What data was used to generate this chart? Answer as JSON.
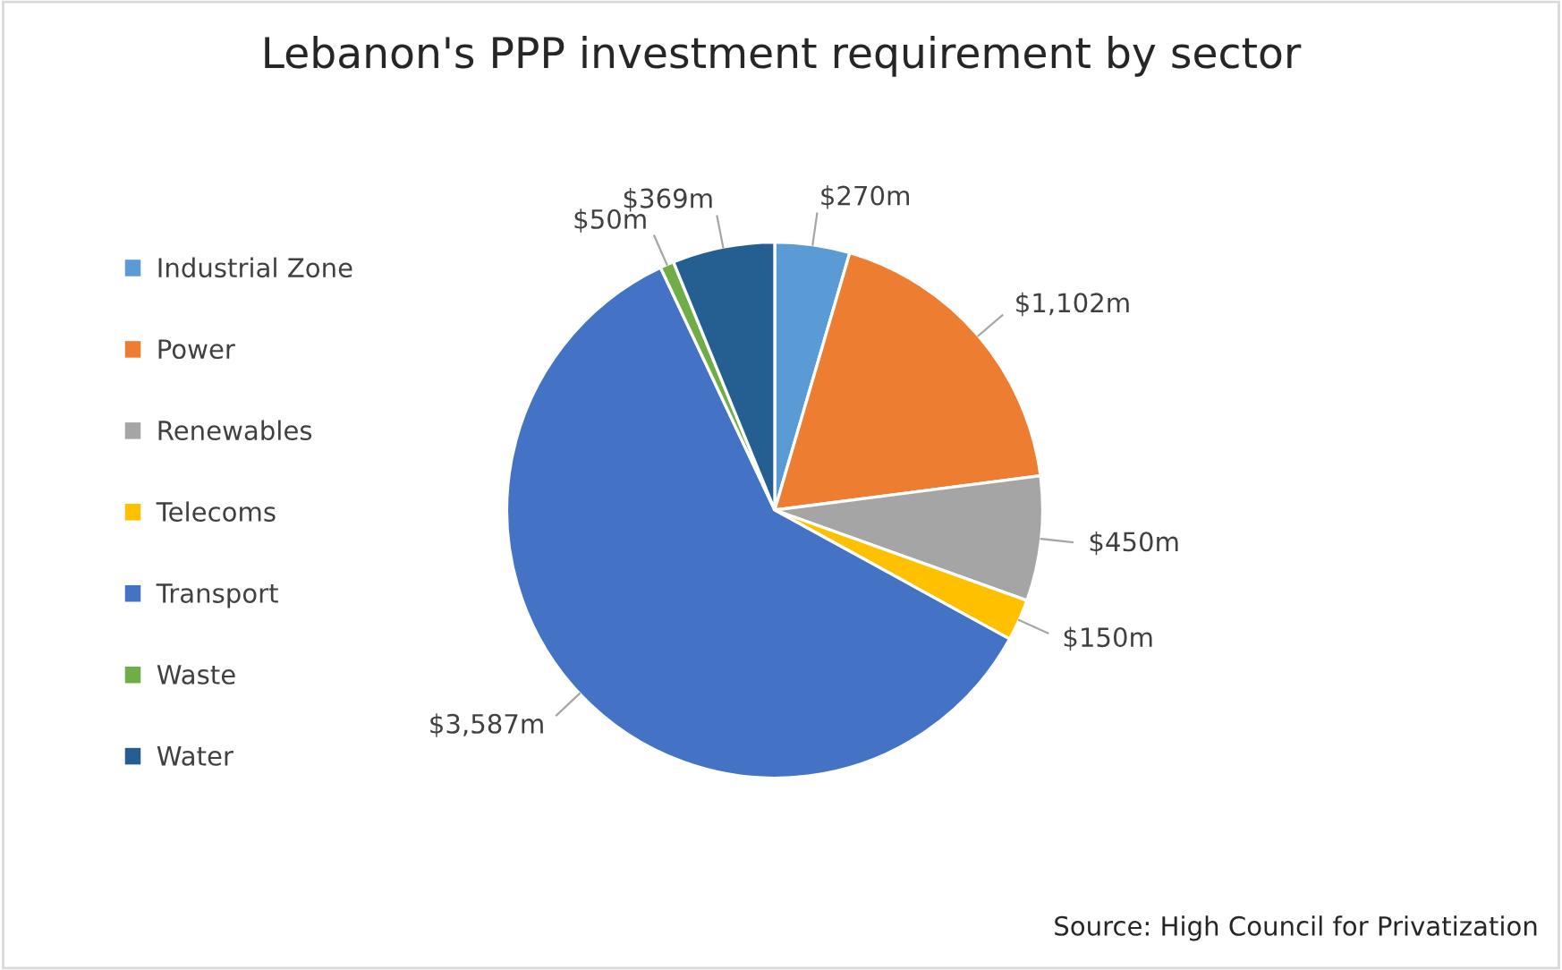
{
  "chart_data": {
    "type": "pie",
    "title": "Lebanon's PPP investment requirement by sector",
    "categories": [
      "Industrial Zone",
      "Power",
      "Renewables",
      "Telecoms",
      "Transport",
      "Waste",
      "Water"
    ],
    "values": [
      270,
      1102,
      450,
      150,
      3587,
      50,
      369
    ],
    "value_labels": [
      "$270m",
      "$1,102m",
      "$450m",
      "$150m",
      "$3,587m",
      "$50m",
      "$369m"
    ],
    "colors": [
      "#5b9bd5",
      "#ed7d31",
      "#a5a5a5",
      "#ffc000",
      "#4472c4",
      "#70ad47",
      "#255e91"
    ],
    "legend": "left",
    "annotations": [
      "Source: High Council for Privatization"
    ]
  }
}
